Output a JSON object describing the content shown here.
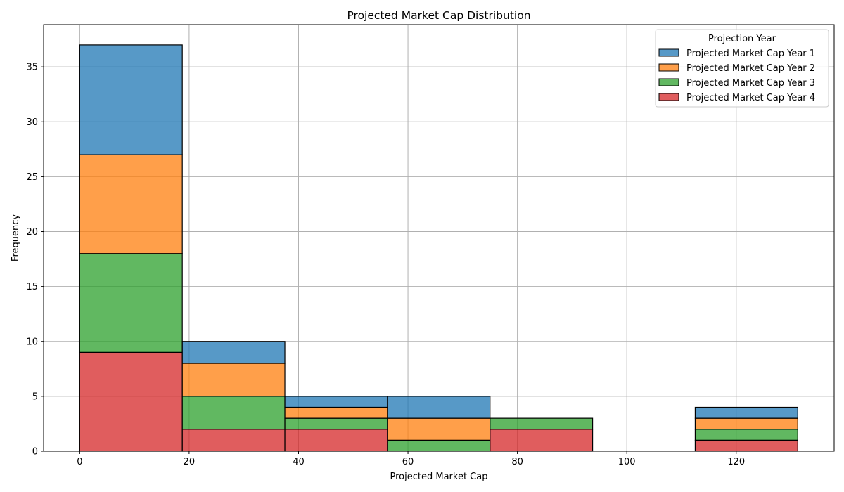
{
  "chart_data": {
    "type": "bar",
    "stacked": true,
    "histogram": true,
    "title": "Projected Market Cap Distribution",
    "xlabel": "Projected Market Cap",
    "ylabel": "Frequency",
    "xlim": [
      -6.6,
      137.9
    ],
    "ylim": [
      0,
      38.85
    ],
    "xticks": [
      0,
      20,
      40,
      60,
      80,
      100,
      120
    ],
    "yticks": [
      0,
      5,
      10,
      15,
      20,
      25,
      30,
      35
    ],
    "grid": true,
    "bin_edges": [
      0,
      18.75,
      37.5,
      56.25,
      75,
      93.75,
      112.5,
      131.25
    ],
    "legend": {
      "title": "Projection Year",
      "placement": "top-right"
    },
    "series": [
      {
        "name": "Projected Market Cap Year 4",
        "color": "#d62728",
        "values": [
          9,
          2,
          2,
          0,
          2,
          0,
          1
        ]
      },
      {
        "name": "Projected Market Cap Year 3",
        "color": "#2ca02c",
        "values": [
          9,
          3,
          1,
          1,
          1,
          0,
          1
        ]
      },
      {
        "name": "Projected Market Cap Year 2",
        "color": "#ff7f0e",
        "values": [
          9,
          3,
          1,
          2,
          0,
          0,
          1
        ]
      },
      {
        "name": "Projected Market Cap Year 1",
        "color": "#1f77b4",
        "values": [
          10,
          2,
          1,
          2,
          0,
          0,
          1
        ]
      }
    ],
    "legend_order": [
      "Projected Market Cap Year 1",
      "Projected Market Cap Year 2",
      "Projected Market Cap Year 3",
      "Projected Market Cap Year 4"
    ]
  }
}
